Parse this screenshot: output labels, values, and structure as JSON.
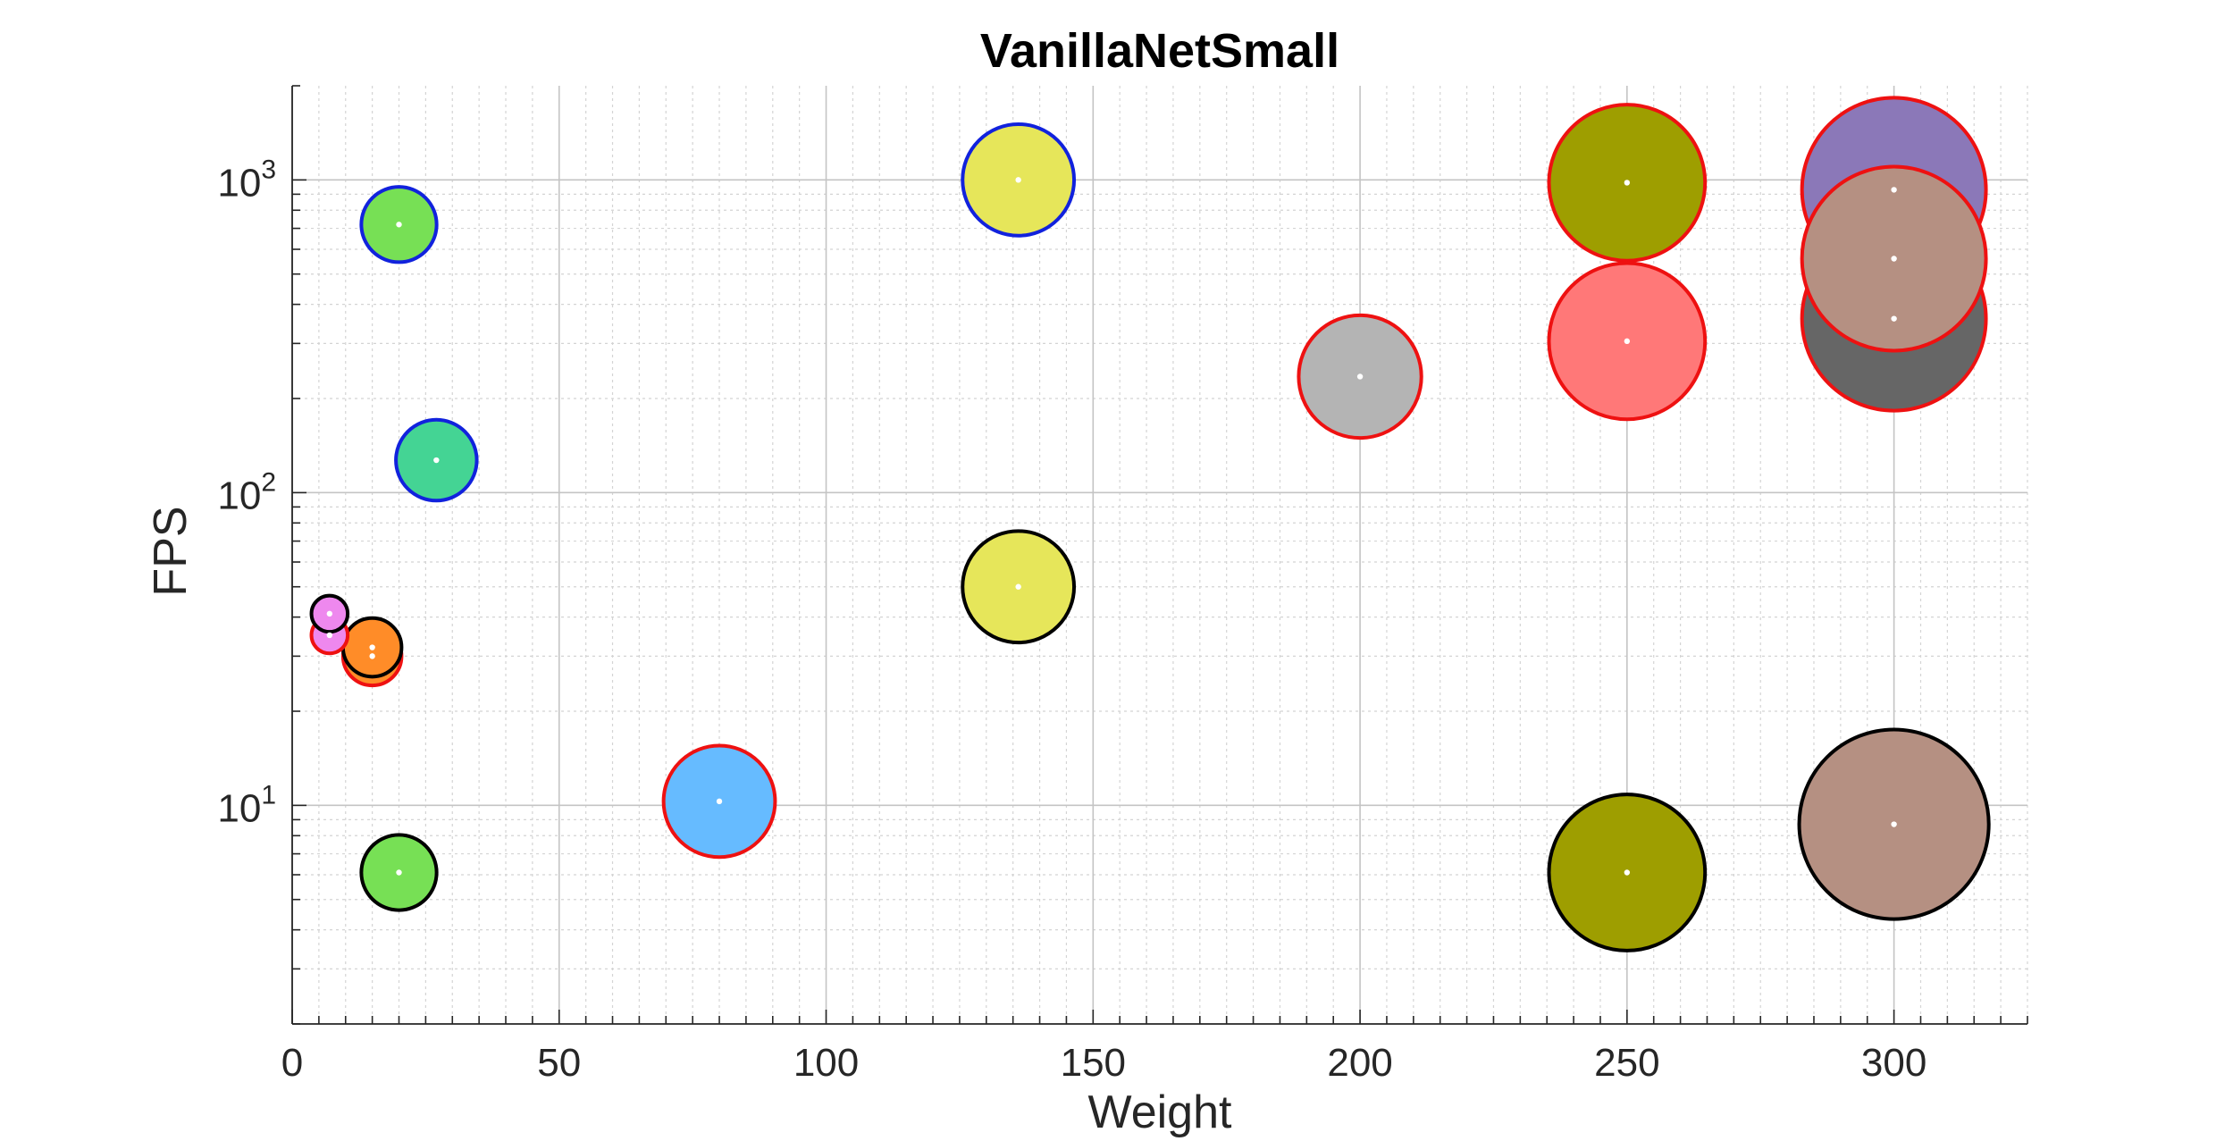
{
  "chart_data": {
    "type": "scatter",
    "title": "VanillaNetSmall",
    "xlabel": "Weight",
    "ylabel": "FPS",
    "xlim": [
      0,
      325
    ],
    "ylim": [
      2,
      2000
    ],
    "yscale": "log",
    "x_ticks": [
      0,
      50,
      100,
      150,
      200,
      250,
      300
    ],
    "y_ticks": [
      {
        "base": "10",
        "exp": "1",
        "value": 10
      },
      {
        "base": "10",
        "exp": "2",
        "value": 100
      },
      {
        "base": "10",
        "exp": "3",
        "value": 1000
      }
    ],
    "grid": true,
    "minor_grid": true,
    "points": [
      {
        "x": 300,
        "y": 930,
        "size": 66,
        "fill": "#8b78b8",
        "edge": "#ee1111"
      },
      {
        "x": 300,
        "y": 360,
        "size": 66,
        "fill": "#666666",
        "edge": "#ee1111"
      },
      {
        "x": 300,
        "y": 560,
        "size": 66,
        "fill": "#b59082",
        "edge": "#ee1111"
      },
      {
        "x": 250,
        "y": 980,
        "size": 56,
        "fill": "#9e9e00",
        "edge": "#ee1111"
      },
      {
        "x": 250,
        "y": 305,
        "size": 56,
        "fill": "#ff7878",
        "edge": "#ee1111"
      },
      {
        "x": 200,
        "y": 235,
        "size": 44,
        "fill": "#b4b4b4",
        "edge": "#ee1111"
      },
      {
        "x": 136,
        "y": 1000,
        "size": 40,
        "fill": "#e6e65a",
        "edge": "#1122dd"
      },
      {
        "x": 136,
        "y": 50,
        "size": 40,
        "fill": "#e6e65a",
        "edge": "#000000"
      },
      {
        "x": 80,
        "y": 10.3,
        "size": 40,
        "fill": "#66bbff",
        "edge": "#ee1111"
      },
      {
        "x": 27,
        "y": 127,
        "size": 29,
        "fill": "#44d494",
        "edge": "#1122dd"
      },
      {
        "x": 20,
        "y": 720,
        "size": 27,
        "fill": "#77e055",
        "edge": "#1122dd"
      },
      {
        "x": 20,
        "y": 6.1,
        "size": 27,
        "fill": "#77e055",
        "edge": "#000000"
      },
      {
        "x": 250,
        "y": 6.1,
        "size": 56,
        "fill": "#9e9e00",
        "edge": "#000000"
      },
      {
        "x": 300,
        "y": 8.7,
        "size": 68,
        "fill": "#b59082",
        "edge": "#000000"
      },
      {
        "x": 15,
        "y": 30,
        "size": 21,
        "fill": "#ff8c28",
        "edge": "#ee1111"
      },
      {
        "x": 15,
        "y": 32,
        "size": 21,
        "fill": "#ff8c28",
        "edge": "#000000"
      },
      {
        "x": 7,
        "y": 35,
        "size": 13,
        "fill": "#ee88ee",
        "edge": "#ee1111"
      },
      {
        "x": 7,
        "y": 41,
        "size": 13,
        "fill": "#ee88ee",
        "edge": "#000000"
      }
    ]
  }
}
